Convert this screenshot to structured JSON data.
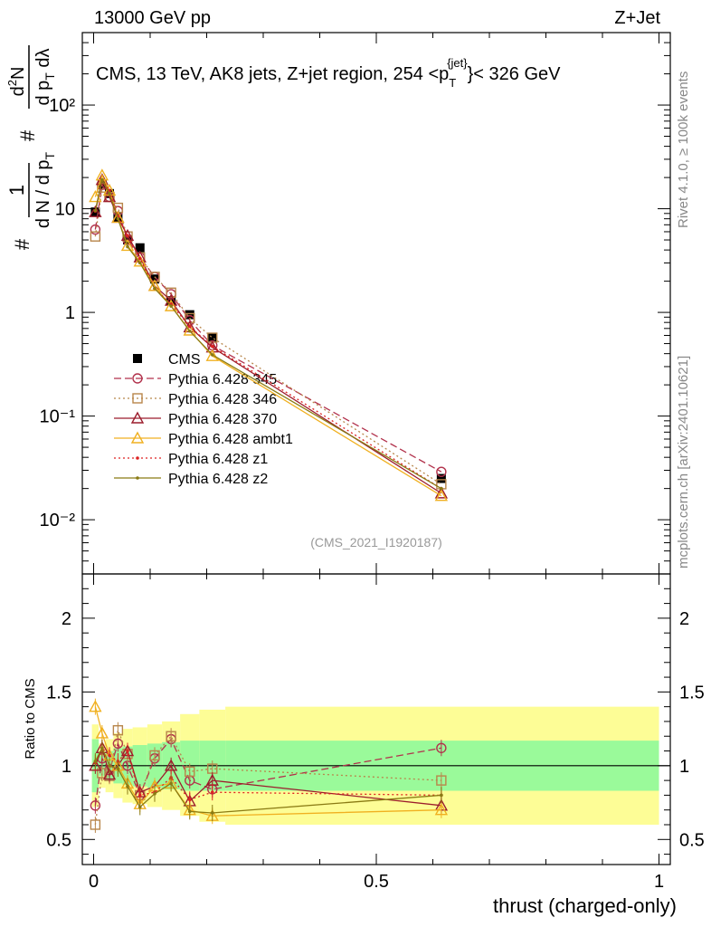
{
  "header": {
    "left": "13000 GeV pp",
    "right": "Z+Jet"
  },
  "side": {
    "rivet": "Rivet 4.1.0, ≥ 100k events",
    "mcplots": "mcplots.cern.ch [arXiv:2401.10621]"
  },
  "chart_data": {
    "type": "line",
    "title": "CMS, 13 TeV, AK8 jets, Z+jet region, 254 <p_T^{jet}< 326 GeV",
    "title_parts": {
      "main": "CMS, 13 TeV, AK8 jets, Z+jet region, 254 <p",
      "sub": "T",
      "sup": "{jet}",
      "rest": "}< 326 GeV"
    },
    "analysis_tag": "(CMS_2021_I1920187)",
    "xlabel": "thrust (charged-only)",
    "ylabel": "1/dN/dp_T # d^2N/dp_T dλ",
    "ratio_ylabel": "Ratio to CMS",
    "xlim": [
      -0.02,
      1.02
    ],
    "ylim": [
      0.003,
      500
    ],
    "ratio_ylim": [
      0.33,
      2.3
    ],
    "x_ticks": [
      "0",
      "0.5",
      "1"
    ],
    "y_ticks": [
      "10",
      "1",
      "10⁻¹",
      "10⁻²"
    ],
    "y_tick_top": "10²",
    "ratio_ticks": [
      "2",
      "1.5",
      "1",
      "0.5"
    ],
    "x": [
      0.003,
      0.015,
      0.028,
      0.043,
      0.06,
      0.082,
      0.108,
      0.137,
      0.17,
      0.21,
      0.615
    ],
    "series": [
      {
        "name": "CMS",
        "style": "data",
        "color": "#000000",
        "values": [
          9.3,
          17,
          14,
          8.2,
          5.0,
          4.2,
          2.1,
          1.3,
          0.95,
          0.57,
          0.025
        ]
      },
      {
        "name": "Pythia 6.428 345",
        "style": "circle",
        "dash": "8,4",
        "color": "#b2324c",
        "values": [
          6.3,
          17,
          13,
          9.5,
          5.0,
          3.4,
          2.2,
          1.5,
          0.84,
          0.48,
          0.029
        ]
      },
      {
        "name": "Pythia 6.428 346",
        "style": "square",
        "dash": "2,3",
        "color": "#b8864b",
        "values": [
          5.4,
          16,
          13,
          10.2,
          5.4,
          3.4,
          2.2,
          1.55,
          0.88,
          0.57,
          0.022
        ]
      },
      {
        "name": "Pythia 6.428 370",
        "style": "triangle",
        "dash": "",
        "color": "#9c1c2c",
        "values": [
          9.3,
          19,
          13,
          8.2,
          5.5,
          3.4,
          1.8,
          1.3,
          0.72,
          0.46,
          0.018
        ]
      },
      {
        "name": "Pythia 6.428 ambt1",
        "style": "triangle",
        "dash": "",
        "color": "#f0b020",
        "values": [
          13,
          21,
          15,
          8.2,
          4.4,
          3.1,
          1.8,
          1.15,
          0.67,
          0.38,
          0.017
        ]
      },
      {
        "name": "Pythia 6.428 z1",
        "style": "dot",
        "dash": "2,3",
        "color": "#dd2222",
        "values": [
          9.5,
          19,
          15,
          8.4,
          5.5,
          3.3,
          1.7,
          1.2,
          0.73,
          0.47,
          0.02
        ]
      },
      {
        "name": "Pythia 6.428 z2",
        "style": "dot",
        "dash": "",
        "color": "#8a7b14",
        "values": [
          9.6,
          19,
          14,
          8.0,
          4.3,
          3.0,
          1.7,
          1.15,
          0.66,
          0.39,
          0.02
        ]
      }
    ],
    "ratio_series": [
      {
        "name": "Pythia 6.428 345",
        "values": [
          0.73,
          1.05,
          0.97,
          1.15,
          1.0,
          0.8,
          1.05,
          1.18,
          0.9,
          0.84,
          1.12
        ]
      },
      {
        "name": "Pythia 6.428 346",
        "values": [
          0.6,
          0.95,
          0.93,
          1.24,
          1.08,
          0.8,
          1.07,
          1.2,
          0.96,
          0.98,
          0.9
        ]
      },
      {
        "name": "Pythia 6.428 370",
        "values": [
          1.0,
          1.12,
          0.94,
          1.0,
          1.1,
          0.82,
          0.86,
          1.0,
          0.76,
          0.9,
          0.73
        ]
      },
      {
        "name": "Pythia 6.428 ambt1",
        "values": [
          1.4,
          1.22,
          1.07,
          1.0,
          0.88,
          0.74,
          0.86,
          0.88,
          0.7,
          0.66,
          0.7
        ]
      },
      {
        "name": "Pythia 6.428 z1",
        "values": [
          1.02,
          1.12,
          1.07,
          1.03,
          1.1,
          0.8,
          0.82,
          0.92,
          0.77,
          0.82,
          0.8
        ]
      },
      {
        "name": "Pythia 6.428 z2",
        "values": [
          1.03,
          1.12,
          1.0,
          0.98,
          0.86,
          0.72,
          0.81,
          0.88,
          0.69,
          0.68,
          0.8
        ]
      }
    ],
    "uncertainty_bands": {
      "edges": [
        -0.003,
        0.009,
        0.021,
        0.035,
        0.051,
        0.069,
        0.095,
        0.121,
        0.153,
        0.187,
        0.233,
        1.0
      ],
      "stat_low": [
        0.82,
        0.93,
        0.9,
        0.88,
        0.87,
        0.86,
        0.85,
        0.84,
        0.83,
        0.83,
        0.83
      ],
      "stat_high": [
        1.18,
        1.07,
        1.1,
        1.12,
        1.13,
        1.14,
        1.15,
        1.16,
        1.17,
        1.17,
        1.17
      ],
      "total_low": [
        0.72,
        0.85,
        0.82,
        0.78,
        0.75,
        0.74,
        0.72,
        0.7,
        0.66,
        0.62,
        0.6
      ],
      "total_high": [
        1.28,
        1.15,
        1.18,
        1.22,
        1.25,
        1.26,
        1.28,
        1.3,
        1.35,
        1.38,
        1.4
      ]
    },
    "colors": {
      "stat_band": "#9afa9a",
      "total_band": "#fdfd96"
    }
  }
}
